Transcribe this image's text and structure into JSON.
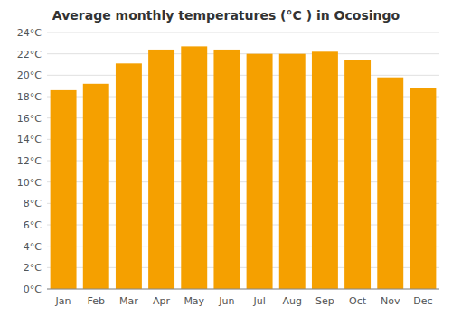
{
  "chart_data": {
    "type": "bar",
    "title": "Average monthly temperatures (°C ) in Ocosingo",
    "categories": [
      "Jan",
      "Feb",
      "Mar",
      "Apr",
      "May",
      "Jun",
      "Jul",
      "Aug",
      "Sep",
      "Oct",
      "Nov",
      "Dec"
    ],
    "values": [
      18.6,
      19.2,
      21.1,
      22.4,
      22.7,
      22.4,
      22.0,
      22.0,
      22.2,
      21.4,
      19.8,
      18.8
    ],
    "color": "#F5A000",
    "ylim": [
      0,
      24
    ],
    "yticks": [
      {
        "value": 0,
        "label": "0°C"
      },
      {
        "value": 2,
        "label": "2°C"
      },
      {
        "value": 4,
        "label": "4°C"
      },
      {
        "value": 6,
        "label": "6°C"
      },
      {
        "value": 8,
        "label": "8°C"
      },
      {
        "value": 10,
        "label": "10°C"
      },
      {
        "value": 12,
        "label": "12°C"
      },
      {
        "value": 14,
        "label": "14°C"
      },
      {
        "value": 16,
        "label": "16°C"
      },
      {
        "value": 18,
        "label": "18°C"
      },
      {
        "value": 20,
        "label": "20°C"
      },
      {
        "value": 22,
        "label": "22°C"
      },
      {
        "value": 24,
        "label": "24°C"
      }
    ],
    "grid": true
  }
}
